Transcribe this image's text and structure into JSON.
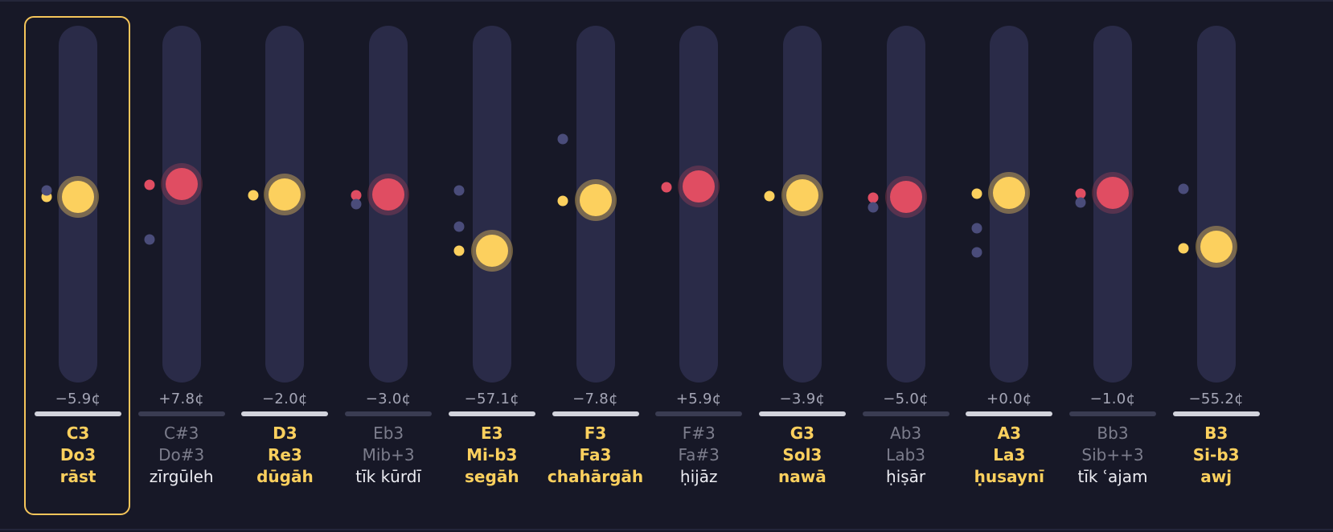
{
  "colors": {
    "background": "#171827",
    "track": "#2a2b48",
    "natural": "#fcd05e",
    "accidental_marker": "#e04d62",
    "ghost_dot": "#4a4c7a",
    "selection": "#f5c55a"
  },
  "selected_index": 0,
  "notes": [
    {
      "western": "C3",
      "solfege": "Do3",
      "maqam": "rāst",
      "cents": "−5.9¢",
      "type": "natural"
    },
    {
      "western": "C#3",
      "solfege": "Do#3",
      "maqam": "zīrgūleh",
      "cents": "+7.8¢",
      "type": "accidental"
    },
    {
      "western": "D3",
      "solfege": "Re3",
      "maqam": "dūgāh",
      "cents": "−2.0¢",
      "type": "natural"
    },
    {
      "western": "Eb3",
      "solfege": "Mib+3",
      "maqam": "tīk kūrdī",
      "cents": "−3.0¢",
      "type": "accidental"
    },
    {
      "western": "E3",
      "solfege": "Mi-b3",
      "maqam": "segāh",
      "cents": "−57.1¢",
      "type": "natural"
    },
    {
      "western": "F3",
      "solfege": "Fa3",
      "maqam": "chahārgāh",
      "cents": "−7.8¢",
      "type": "natural"
    },
    {
      "western": "F#3",
      "solfege": "Fa#3",
      "maqam": "ḥijāz",
      "cents": "+5.9¢",
      "type": "accidental"
    },
    {
      "western": "G3",
      "solfege": "Sol3",
      "maqam": "nawā",
      "cents": "−3.9¢",
      "type": "natural"
    },
    {
      "western": "Ab3",
      "solfege": "Lab3",
      "maqam": "ḥiṣār",
      "cents": "−5.0¢",
      "type": "accidental"
    },
    {
      "western": "A3",
      "solfege": "La3",
      "maqam": "ḥusaynī",
      "cents": "+0.0¢",
      "type": "natural"
    },
    {
      "western": "Bb3",
      "solfege": "Sib++3",
      "maqam": "tīk ʿajam",
      "cents": "−1.0¢",
      "type": "accidental"
    },
    {
      "western": "B3",
      "solfege": "Si-b3",
      "maqam": "awj",
      "cents": "−55.2¢",
      "type": "natural"
    }
  ]
}
